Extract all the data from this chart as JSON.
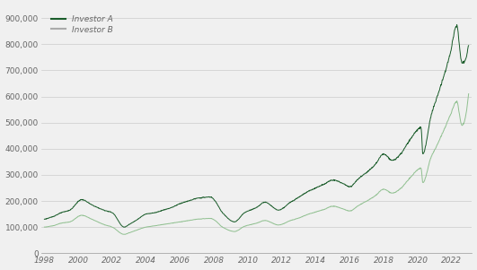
{
  "investor_a_label": "Investor A",
  "investor_b_label": "Investor B",
  "color_a": "#1a5c2a",
  "color_b": "#90c090",
  "background_color": "#f0f0f0",
  "ylim": [
    0,
    950000
  ],
  "yticks": [
    0,
    100000,
    200000,
    300000,
    400000,
    500000,
    600000,
    700000,
    800000,
    900000
  ],
  "xticks": [
    1998,
    2000,
    2002,
    2004,
    2006,
    2008,
    2010,
    2012,
    2014,
    2016,
    2018,
    2020,
    2022
  ],
  "linewidth": 0.7,
  "legend_color_a": "#1a5c2a",
  "legend_color_b": "#aaaaaa"
}
